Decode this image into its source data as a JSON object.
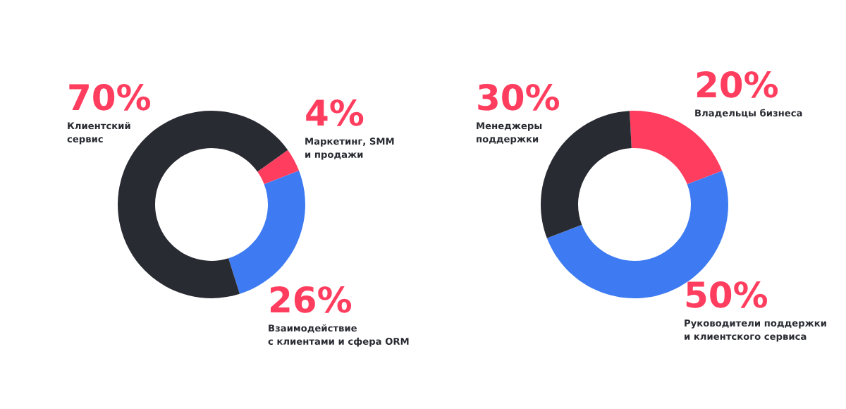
{
  "chart_data": [
    {
      "type": "donut",
      "categories": [
        "Маркетинг, SMM\nи продажи",
        "Взаимодействие\nс клиентами и сфера ORM",
        "Клиентский\nсервис"
      ],
      "values": [
        4,
        26,
        70
      ],
      "colors": [
        "#ff3d5e",
        "#3e7bf2",
        "#292b32"
      ],
      "value_labels": [
        "4%",
        "26%",
        "70%"
      ]
    },
    {
      "type": "donut",
      "categories": [
        "Владельцы бизнеса",
        "Руководители поддержки\nи клиентского сервиса",
        "Менеджеры\nподдержки"
      ],
      "values": [
        20,
        50,
        30
      ],
      "colors": [
        "#ff3d5e",
        "#3e7bf2",
        "#292b32"
      ],
      "value_labels": [
        "20%",
        "50%",
        "30%"
      ]
    }
  ]
}
